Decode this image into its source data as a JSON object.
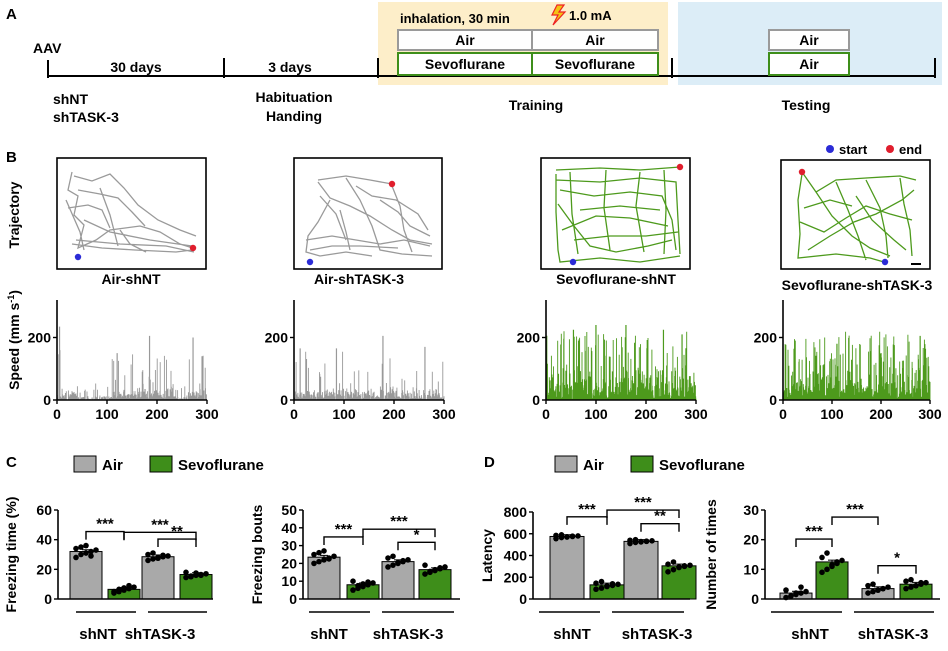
{
  "colors": {
    "air": "#a9a9a9",
    "sevo": "#3e8e1a",
    "sevo_trace": "#4d9a1c",
    "air_trace": "#999999",
    "training_bg": "#fdeec9",
    "testing_bg": "#dcedf7",
    "start_dot": "#2b2bd6",
    "end_dot": "#e01e2d"
  },
  "panel_a": {
    "letter": "A",
    "aav_label": "AAV",
    "segments": [
      "30 days",
      "3 days"
    ],
    "group_labels": [
      "shNT",
      "shTASK-3"
    ],
    "habituation_labels": [
      "Habituation",
      "Handing"
    ],
    "inhalation_label": "inhalation, 30 min",
    "shock_label": "1.0 mA",
    "training_boxes": {
      "air": [
        "Air",
        "Air"
      ],
      "sevo": [
        "Sevoflurane",
        "Sevoflurane"
      ]
    },
    "testing_boxes": [
      "Air",
      "Air"
    ],
    "phase_labels": [
      "Training",
      "Testing"
    ]
  },
  "panel_b": {
    "letter": "B",
    "trajectory_label": "Trajectory",
    "speed_label": "Speed (mm s",
    "speed_sup": "-1",
    "legend": {
      "start": "start",
      "end": "end"
    },
    "conditions": [
      "Air-shNT",
      "Air-shTASK-3",
      "Sevoflurane-shNT",
      "Sevoflurane-shTASK-3"
    ]
  },
  "panel_c": {
    "letter": "C"
  },
  "panel_d": {
    "letter": "D"
  },
  "chart_data": [
    {
      "type": "line",
      "title": "Air-shNT",
      "xlabel": "",
      "ylabel": "Speed (mm s-1)",
      "xlim": [
        0,
        300
      ],
      "ylim": [
        0,
        320
      ],
      "xticks": [
        0,
        100,
        200,
        300
      ],
      "yticks": [
        0,
        200
      ],
      "series": [
        {
          "name": "Air-shNT",
          "group": "air",
          "peaks_approx": [
            {
              "x": 5,
              "y": 235
            },
            {
              "x": 120,
              "y": 150
            },
            {
              "x": 185,
              "y": 205
            },
            {
              "x": 272,
              "y": 200
            },
            {
              "x": 290,
              "y": 140
            }
          ]
        }
      ]
    },
    {
      "type": "line",
      "title": "Air-shTASK-3",
      "xlabel": "",
      "ylabel": "",
      "xlim": [
        0,
        300
      ],
      "ylim": [
        0,
        320
      ],
      "xticks": [
        0,
        100,
        200,
        300
      ],
      "yticks": [
        0,
        200
      ],
      "series": [
        {
          "name": "Air-shTASK-3",
          "group": "air",
          "peaks_approx": [
            {
              "x": 12,
              "y": 165
            },
            {
              "x": 85,
              "y": 165
            },
            {
              "x": 178,
              "y": 205
            },
            {
              "x": 262,
              "y": 170
            }
          ]
        }
      ]
    },
    {
      "type": "line",
      "title": "Sevoflurane-shNT",
      "xlabel": "",
      "ylabel": "",
      "xlim": [
        0,
        300
      ],
      "ylim": [
        0,
        320
      ],
      "xticks": [
        0,
        100,
        200,
        300
      ],
      "yticks": [
        0,
        200
      ],
      "series": [
        {
          "name": "Sevoflurane-shNT",
          "group": "sevo",
          "peaks_approx": [
            {
              "x": 55,
              "y": 225
            },
            {
              "x": 100,
              "y": 240
            },
            {
              "x": 160,
              "y": 240
            },
            {
              "x": 235,
              "y": 225
            },
            {
              "x": 272,
              "y": 210
            }
          ]
        }
      ]
    },
    {
      "type": "line",
      "title": "Sevoflurane-shTASK-3",
      "xlabel": "",
      "ylabel": "",
      "xlim": [
        0,
        300
      ],
      "ylim": [
        0,
        320
      ],
      "xticks": [
        0,
        100,
        200,
        300
      ],
      "yticks": [
        0,
        200
      ],
      "series": [
        {
          "name": "Sevoflurane-shTASK-3",
          "group": "sevo",
          "peaks_approx": [
            {
              "x": 25,
              "y": 190
            },
            {
              "x": 110,
              "y": 180
            },
            {
              "x": 200,
              "y": 150
            },
            {
              "x": 280,
              "y": 205
            }
          ]
        }
      ]
    },
    {
      "type": "bar",
      "title": "",
      "legend": [
        "Air",
        "Sevoflurane"
      ],
      "ylabel": "Freezing time (%)",
      "ylim": [
        0,
        60
      ],
      "yticks": [
        0,
        20,
        40,
        60
      ],
      "categories": [
        "shNT",
        "shTASK-3"
      ],
      "series": [
        {
          "name": "Air",
          "values": [
            32,
            28.5
          ],
          "points": [
            [
              28,
              30,
              31,
              32,
              33,
              34,
              35,
              36,
              29
            ],
            [
              26,
              27,
              28,
              28.5,
              29,
              30,
              31,
              27.5,
              29.5
            ]
          ]
        },
        {
          "name": "Sevoflurane",
          "values": [
            6.5,
            16.5
          ],
          "points": [
            [
              4,
              5,
              6,
              7,
              8,
              5,
              6.5,
              7.5,
              9
            ],
            [
              14.5,
              15,
              16,
              16.5,
              17,
              18,
              15.5,
              17.5,
              16
            ]
          ]
        }
      ],
      "significance": [
        {
          "pair": [
            "shNT Air",
            "shNT Sevoflurane"
          ],
          "label": "***"
        },
        {
          "pair": [
            "shNT Sevoflurane",
            "shTASK-3 Sevoflurane"
          ],
          "label": "***"
        },
        {
          "pair": [
            "shTASK-3 Air",
            "shTASK-3 Sevoflurane"
          ],
          "label": "**"
        }
      ]
    },
    {
      "type": "bar",
      "title": "",
      "ylabel": "Freezing bouts",
      "ylim": [
        0,
        50
      ],
      "yticks": [
        0,
        10,
        20,
        30,
        40,
        50
      ],
      "categories": [
        "shNT",
        "shTASK-3"
      ],
      "series": [
        {
          "name": "Air",
          "values": [
            23.5,
            21
          ],
          "points": [
            [
              20,
              21,
              22,
              23,
              24,
              25,
              26,
              27,
              22.5
            ],
            [
              18,
              19,
              20,
              21,
              22,
              23,
              24,
              20.5,
              21.5
            ]
          ]
        },
        {
          "name": "Sevoflurane",
          "values": [
            8,
            16.5
          ],
          "points": [
            [
              5,
              6,
              7,
              8,
              9,
              10,
              7.5,
              8.5,
              9.5
            ],
            [
              14,
              15,
              16,
              17,
              18,
              19,
              15.5,
              16.5,
              17.5
            ]
          ]
        }
      ],
      "significance": [
        {
          "pair": [
            "shNT Air",
            "shNT Sevoflurane"
          ],
          "label": "***"
        },
        {
          "pair": [
            "shNT Sevoflurane",
            "shTASK-3 Sevoflurane"
          ],
          "label": "***"
        },
        {
          "pair": [
            "shTASK-3 Air",
            "shTASK-3 Sevoflurane"
          ],
          "label": "*"
        }
      ]
    },
    {
      "type": "bar",
      "title": "",
      "legend": [
        "Air",
        "Sevoflurane"
      ],
      "ylabel": "Latency",
      "ylim": [
        0,
        800
      ],
      "yticks": [
        0,
        200,
        400,
        600,
        800
      ],
      "categories": [
        "shNT",
        "shTASK-3"
      ],
      "series": [
        {
          "name": "Air",
          "values": [
            575,
            530
          ],
          "points": [
            [
              555,
              565,
              570,
              575,
              580,
              585,
              590,
              572,
              578
            ],
            [
              510,
              520,
              525,
              530,
              535,
              540,
              545,
              528,
              532
            ]
          ]
        },
        {
          "name": "Sevoflurane",
          "values": [
            130,
            305
          ],
          "points": [
            [
              90,
              100,
              115,
              125,
              135,
              145,
              160,
              120,
              140
            ],
            [
              250,
              270,
              290,
              300,
              310,
              320,
              340,
              295,
              305
            ]
          ]
        }
      ],
      "significance": [
        {
          "pair": [
            "shNT Air",
            "shNT Sevoflurane"
          ],
          "label": "***"
        },
        {
          "pair": [
            "shNT Sevoflurane",
            "shTASK-3 Sevoflurane"
          ],
          "label": "***"
        },
        {
          "pair": [
            "shTASK-3 Air",
            "shTASK-3 Sevoflurane"
          ],
          "label": "**"
        }
      ]
    },
    {
      "type": "bar",
      "title": "",
      "ylabel": "Number of times",
      "ylim": [
        0,
        30
      ],
      "yticks": [
        0,
        10,
        20,
        30
      ],
      "categories": [
        "shNT",
        "shTASK-3"
      ],
      "series": [
        {
          "name": "Air",
          "values": [
            2,
            3.5
          ],
          "points": [
            [
              0.5,
              1,
              1.5,
              2,
              2.5,
              3,
              1,
              2,
              4
            ],
            [
              2,
              2.5,
              3,
              3.5,
              4,
              4.5,
              5,
              3,
              3.5
            ]
          ]
        },
        {
          "name": "Sevoflurane",
          "values": [
            12.5,
            5
          ],
          "points": [
            [
              9,
              10,
              11,
              12,
              13,
              14,
              15.5,
              11.5,
              12.5
            ],
            [
              3.5,
              4,
              4.5,
              5,
              5.5,
              6,
              6.5,
              4.5,
              5.5
            ]
          ]
        }
      ],
      "significance": [
        {
          "pair": [
            "shNT Air",
            "shNT Sevoflurane"
          ],
          "label": "***"
        },
        {
          "pair": [
            "shNT Sevoflurane",
            "shTASK-3 Air"
          ],
          "label": "***"
        },
        {
          "pair": [
            "shTASK-3 Air",
            "shTASK-3 Sevoflurane"
          ],
          "label": "*"
        }
      ]
    }
  ]
}
